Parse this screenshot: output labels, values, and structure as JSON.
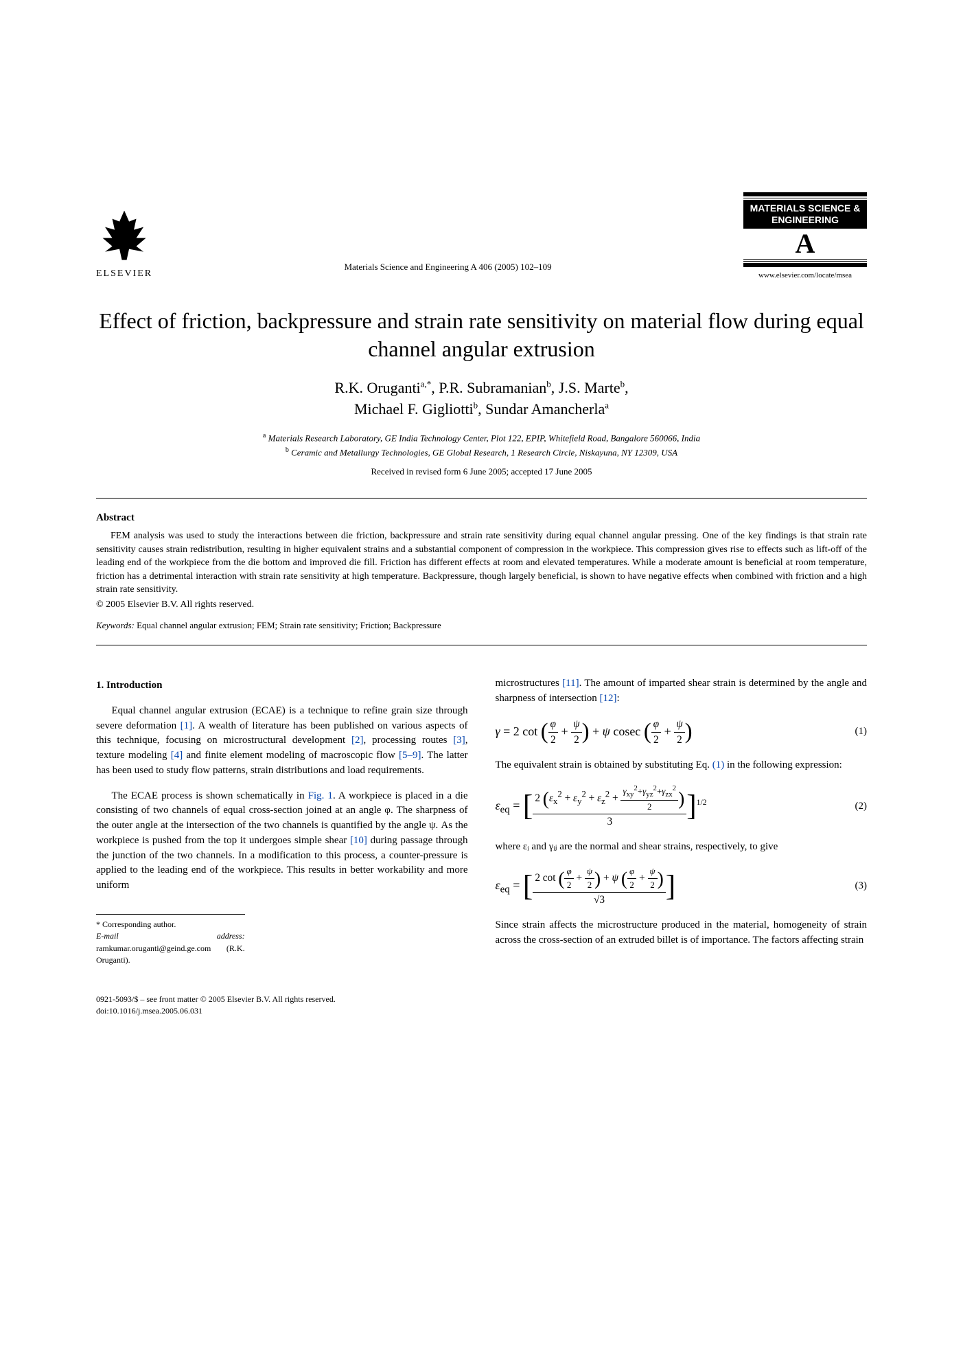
{
  "header": {
    "publisher_name": "ELSEVIER",
    "journal_reference": "Materials Science and Engineering A 406 (2005) 102–109",
    "journal_logo_text": "MATERIALS SCIENCE & ENGINEERING",
    "journal_logo_letter": "A",
    "journal_url": "www.elsevier.com/locate/msea"
  },
  "title": "Effect of friction, backpressure and strain rate sensitivity on material flow during equal channel angular extrusion",
  "authors_line1": "R.K. Oruganti",
  "authors_sup1": "a,*",
  "authors_line1b": ", P.R. Subramanian",
  "authors_sup2": "b",
  "authors_line1c": ", J.S. Marte",
  "authors_sup3": "b",
  "authors_line1d": ",",
  "authors_line2": "Michael F. Gigliotti",
  "authors_sup4": "b",
  "authors_line2b": ", Sundar Amancherla",
  "authors_sup5": "a",
  "affiliations": {
    "a_sup": "a",
    "a": " Materials Research Laboratory, GE India Technology Center, Plot 122, EPIP, Whitefield Road, Bangalore 560066, India",
    "b_sup": "b",
    "b": " Ceramic and Metallurgy Technologies, GE Global Research, 1 Research Circle, Niskayuna, NY 12309, USA"
  },
  "dates": "Received in revised form 6 June 2005; accepted 17 June 2005",
  "abstract": {
    "heading": "Abstract",
    "body": "FEM analysis was used to study the interactions between die friction, backpressure and strain rate sensitivity during equal channel angular pressing. One of the key findings is that strain rate sensitivity causes strain redistribution, resulting in higher equivalent strains and a substantial component of compression in the workpiece. This compression gives rise to effects such as lift-off of the leading end of the workpiece from the die bottom and improved die fill. Friction has different effects at room and elevated temperatures. While a moderate amount is beneficial at room temperature, friction has a detrimental interaction with strain rate sensitivity at high temperature. Backpressure, though largely beneficial, is shown to have negative effects when combined with friction and a high strain rate sensitivity.",
    "copyright": "© 2005 Elsevier B.V. All rights reserved."
  },
  "keywords": {
    "label": "Keywords:",
    "text": " Equal channel angular extrusion; FEM; Strain rate sensitivity; Friction; Backpressure"
  },
  "section1_heading": "1. Introduction",
  "col1": {
    "p1a": "Equal channel angular extrusion (ECAE) is a technique to refine grain size through severe deformation ",
    "ref1": "[1]",
    "p1b": ". A wealth of literature has been published on various aspects of this technique, focusing on microstructural development ",
    "ref2": "[2]",
    "p1c": ", processing routes ",
    "ref3": "[3]",
    "p1d": ", texture modeling ",
    "ref4": "[4]",
    "p1e": " and finite element modeling of macroscopic flow ",
    "ref5_9": "[5–9]",
    "p1f": ". The latter has been used to study flow patterns, strain distributions and load requirements.",
    "p2a": "The ECAE process is shown schematically in ",
    "fig1": "Fig. 1",
    "p2b": ". A workpiece is placed in a die consisting of two channels of equal cross-section joined at an angle φ. The sharpness of the outer angle at the intersection of the two channels is quantified by the angle ψ. As the workpiece is pushed from the top it undergoes simple shear ",
    "ref10": "[10]",
    "p2c": " during passage through the junction of the two channels. In a modification to this process, a counter-pressure is applied to the leading end of the workpiece. This results in better workability and more uniform"
  },
  "footnotes": {
    "corr": "* Corresponding author.",
    "email_label": "E-mail address:",
    "email": " ramkumar.oruganti@geind.ge.com (R.K. Oruganti)."
  },
  "col2": {
    "p1a": "microstructures ",
    "ref11": "[11]",
    "p1b": ". The amount of imparted shear strain is determined by the angle and sharpness of intersection ",
    "ref12": "[12]",
    "p1c": ":",
    "eq1_num": "(1)",
    "p2a": "The equivalent strain is obtained by substituting Eq. ",
    "eq1_link": "(1)",
    "p2b": " in the following expression:",
    "eq2_num": "(2)",
    "p3": "where εᵢ and γᵢⱼ are the normal and shear strains, respectively, to give",
    "eq3_num": "(3)",
    "p4": "Since strain affects the microstructure produced in the material, homogeneity of strain across the cross-section of an extruded billet is of importance. The factors affecting strain"
  },
  "footer": {
    "line1": "0921-5093/$ – see front matter © 2005 Elsevier B.V. All rights reserved.",
    "line2": "doi:10.1016/j.msea.2005.06.031"
  }
}
